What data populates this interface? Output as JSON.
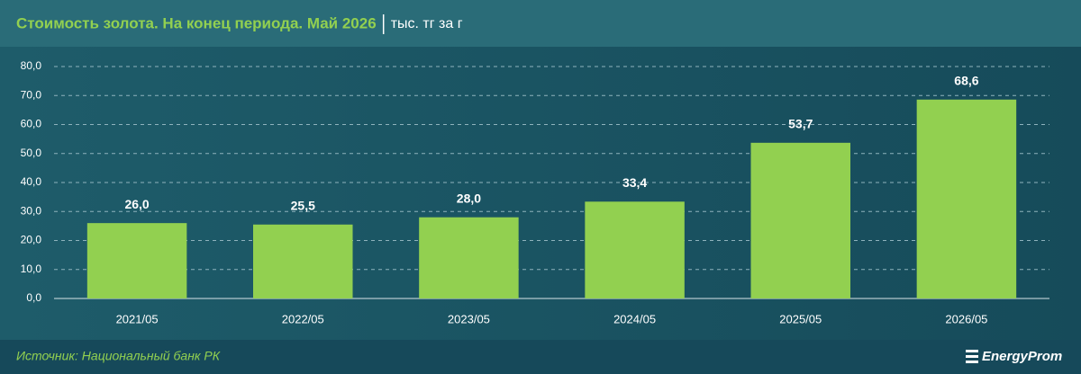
{
  "chart_data": {
    "type": "bar",
    "title": "Стоимость золота. На конец периода. Май 2026",
    "unit": "тыс. тг за г",
    "categories": [
      "2021/05",
      "2022/05",
      "2023/05",
      "2024/05",
      "2025/05",
      "2026/05"
    ],
    "values": [
      26.0,
      25.5,
      28.0,
      33.4,
      53.7,
      68.6
    ],
    "value_labels": [
      "26,0",
      "25,5",
      "28,0",
      "33,4",
      "53,7",
      "68,6"
    ],
    "color": "#92d050",
    "ylim": [
      0,
      80
    ],
    "yticks": [
      {
        "value": 0,
        "label": "0,0"
      },
      {
        "value": 10,
        "label": "10,0"
      },
      {
        "value": 20,
        "label": "20,0"
      },
      {
        "value": 30,
        "label": "30,0"
      },
      {
        "value": 40,
        "label": "40,0"
      },
      {
        "value": 50,
        "label": "50,0"
      },
      {
        "value": 60,
        "label": "60,0"
      },
      {
        "value": 70,
        "label": "70,0"
      },
      {
        "value": 80,
        "label": "80,0"
      }
    ],
    "grid": true
  },
  "footer": {
    "source": "Источник: Национальный банк РК",
    "logo": "EnergyProm"
  }
}
